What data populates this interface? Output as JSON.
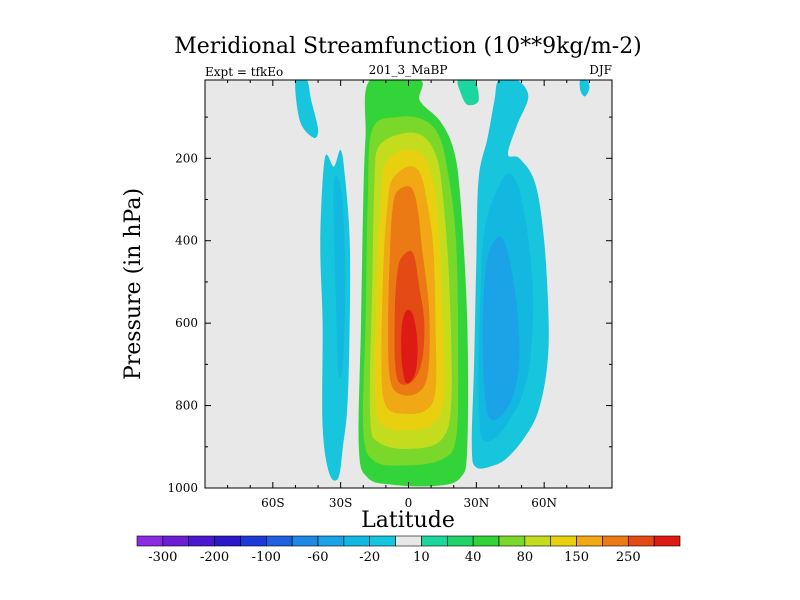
{
  "chart_data": {
    "type": "heatmap",
    "title": "Meridional Streamfunction (10**9kg/m-2)",
    "left_string": "Expt = tfkEo",
    "center_string": "201_3_MaBP",
    "right_string": "DJF",
    "xlabel": "Latitude",
    "ylabel": "Pressure (in hPa)",
    "xlim": [
      -90,
      90
    ],
    "ylim": [
      1000,
      10
    ],
    "x_ticks": [
      {
        "value": -60,
        "label": "60S"
      },
      {
        "value": -30,
        "label": "30S"
      },
      {
        "value": 0,
        "label": "0"
      },
      {
        "value": 30,
        "label": "30N"
      },
      {
        "value": 60,
        "label": "60N"
      }
    ],
    "y_ticks": [
      {
        "value": 200,
        "label": "200"
      },
      {
        "value": 400,
        "label": "400"
      },
      {
        "value": 600,
        "label": "600"
      },
      {
        "value": 800,
        "label": "800"
      },
      {
        "value": 1000,
        "label": "1000"
      }
    ],
    "colorbar": {
      "levels": [
        -300,
        -250,
        -200,
        -150,
        -100,
        -80,
        -60,
        -40,
        -20,
        -10,
        10,
        20,
        40,
        60,
        80,
        100,
        150,
        200,
        250,
        300
      ],
      "labels": [
        "-300",
        "-200",
        "-100",
        "-60",
        "-20",
        "10",
        "40",
        "80",
        "150",
        "250"
      ],
      "colors": [
        "#8a2be2",
        "#6a1fd6",
        "#4b16d0",
        "#2b16c8",
        "#1c3ad8",
        "#1f5fe0",
        "#1e88e5",
        "#1aa3e6",
        "#13b8e0",
        "#17c5dd",
        "#e8e8e8",
        "#1cd6a0",
        "#22d36a",
        "#33d43a",
        "#7ad82a",
        "#c4dc1e",
        "#e8cf10",
        "#f0a814",
        "#ec7a14",
        "#e44a14",
        "#dd1a14"
      ]
    },
    "fields": {
      "background": {
        "color": "#e8e8e8"
      },
      "positive_cell": [
        {
          "value": 20,
          "color": "#33d43a",
          "outline": [
            [
              -17,
              10
            ],
            [
              5,
              10
            ],
            [
              5,
              60
            ],
            [
              14,
              110
            ],
            [
              20,
              180
            ],
            [
              23,
              300
            ],
            [
              26,
              600
            ],
            [
              26,
              900
            ],
            [
              23,
              975
            ],
            [
              12,
              995
            ],
            [
              -7,
              992
            ],
            [
              -18,
              975
            ],
            [
              -22,
              900
            ],
            [
              -21,
              600
            ],
            [
              -20,
              300
            ],
            [
              -19,
              150
            ]
          ]
        },
        {
          "value": 40,
          "color": "#7ad82a",
          "outline": [
            [
              -16,
              130
            ],
            [
              -5,
              100
            ],
            [
              6,
              105
            ],
            [
              13,
              140
            ],
            [
              17,
              220
            ],
            [
              21,
              400
            ],
            [
              22,
              700
            ],
            [
              21,
              880
            ],
            [
              15,
              930
            ],
            [
              0,
              945
            ],
            [
              -15,
              935
            ],
            [
              -20,
              860
            ],
            [
              -19,
              600
            ],
            [
              -18,
              300
            ]
          ]
        },
        {
          "value": 80,
          "color": "#c4dc1e",
          "outline": [
            [
              -13,
              170
            ],
            [
              -3,
              140
            ],
            [
              6,
              145
            ],
            [
              12,
              190
            ],
            [
              15,
              280
            ],
            [
              18,
              500
            ],
            [
              19,
              780
            ],
            [
              15,
              880
            ],
            [
              2,
              905
            ],
            [
              -13,
              890
            ],
            [
              -17,
              820
            ],
            [
              -16,
              500
            ],
            [
              -15,
              250
            ]
          ]
        },
        {
          "value": 100,
          "color": "#e8cf10",
          "outline": [
            [
              -10,
              210
            ],
            [
              -2,
              180
            ],
            [
              6,
              190
            ],
            [
              10,
              240
            ],
            [
              13,
              330
            ],
            [
              15,
              550
            ],
            [
              16,
              760
            ],
            [
              12,
              840
            ],
            [
              0,
              860
            ],
            [
              -12,
              845
            ],
            [
              -15,
              760
            ],
            [
              -14,
              480
            ],
            [
              -12,
              280
            ]
          ]
        },
        {
          "value": 150,
          "color": "#f0a814",
          "outline": [
            [
              -7,
              250
            ],
            [
              0,
              220
            ],
            [
              5,
              235
            ],
            [
              8,
              300
            ],
            [
              11,
              420
            ],
            [
              12,
              620
            ],
            [
              12,
              760
            ],
            [
              8,
              810
            ],
            [
              -2,
              820
            ],
            [
              -10,
              800
            ],
            [
              -12,
              700
            ],
            [
              -11,
              450
            ],
            [
              -9,
              300
            ]
          ]
        },
        {
          "value": 200,
          "color": "#ec7a14",
          "outline": [
            [
              -5,
              280
            ],
            [
              1,
              270
            ],
            [
              4,
              320
            ],
            [
              6,
              420
            ],
            [
              9,
              560
            ],
            [
              9,
              700
            ],
            [
              6,
              760
            ],
            [
              -2,
              775
            ],
            [
              -8,
              740
            ],
            [
              -9,
              600
            ],
            [
              -8,
              400
            ],
            [
              -7,
              320
            ]
          ]
        },
        {
          "value": 250,
          "color": "#e44a14",
          "outline": [
            [
              -3,
              440
            ],
            [
              2,
              430
            ],
            [
              5,
              520
            ],
            [
              7,
              600
            ],
            [
              6,
              690
            ],
            [
              2,
              740
            ],
            [
              -4,
              745
            ],
            [
              -6,
              690
            ],
            [
              -6,
              560
            ],
            [
              -5,
              480
            ]
          ]
        },
        {
          "value": 300,
          "color": "#dd1a14",
          "outline": [
            [
              -1,
              570
            ],
            [
              2,
              580
            ],
            [
              4,
              650
            ],
            [
              3,
              720
            ],
            [
              -1,
              745
            ],
            [
              -3,
              690
            ],
            [
              -3,
              610
            ]
          ]
        }
      ],
      "nh_negative_cell": [
        {
          "value": -10,
          "color": "#17c5dd",
          "outline": [
            [
              40,
              10
            ],
            [
              48,
              10
            ],
            [
              53,
              50
            ],
            [
              48,
              120
            ],
            [
              44,
              190
            ],
            [
              49,
              200
            ],
            [
              56,
              260
            ],
            [
              60,
              400
            ],
            [
              62,
              600
            ],
            [
              61,
              720
            ],
            [
              57,
              820
            ],
            [
              51,
              880
            ],
            [
              44,
              925
            ],
            [
              38,
              945
            ],
            [
              30,
              950
            ],
            [
              28,
              900
            ],
            [
              29,
              700
            ],
            [
              30,
              450
            ],
            [
              31,
              250
            ],
            [
              35,
              150
            ],
            [
              38,
              60
            ]
          ]
        },
        {
          "value": -20,
          "color": "#13b8e0",
          "outline": [
            [
              36,
              320
            ],
            [
              43,
              240
            ],
            [
              48,
              260
            ],
            [
              52,
              360
            ],
            [
              55,
              520
            ],
            [
              54,
              680
            ],
            [
              50,
              780
            ],
            [
              44,
              840
            ],
            [
              38,
              880
            ],
            [
              32,
              870
            ],
            [
              31,
              700
            ],
            [
              32,
              500
            ],
            [
              33,
              400
            ]
          ]
        },
        {
          "value": -40,
          "color": "#1aa3e6",
          "outline": [
            [
              35,
              440
            ],
            [
              40,
              390
            ],
            [
              44,
              430
            ],
            [
              48,
              560
            ],
            [
              49,
              690
            ],
            [
              46,
              780
            ],
            [
              40,
              830
            ],
            [
              35,
              820
            ],
            [
              33,
              700
            ],
            [
              33,
              560
            ]
          ]
        }
      ],
      "sh_negative_cell": [
        {
          "value": -10,
          "color": "#17c5dd",
          "outline": [
            [
              -37,
              200
            ],
            [
              -33,
              220
            ],
            [
              -30,
              180
            ],
            [
              -28,
              250
            ],
            [
              -26,
              400
            ],
            [
              -26,
              600
            ],
            [
              -27,
              800
            ],
            [
              -29,
              900
            ],
            [
              -31,
              975
            ],
            [
              -35,
              965
            ],
            [
              -38,
              850
            ],
            [
              -38,
              600
            ],
            [
              -39,
              400
            ]
          ]
        },
        {
          "value": -20,
          "color": "#13b8e0",
          "outline": [
            [
              -33,
              260
            ],
            [
              -31,
              250
            ],
            [
              -29,
              320
            ],
            [
              -28,
              500
            ],
            [
              -29,
              700
            ],
            [
              -31,
              720
            ],
            [
              -32,
              560
            ],
            [
              -33,
              380
            ]
          ]
        }
      ],
      "misc_features": [
        {
          "value": -10,
          "color": "#17c5dd",
          "outline": [
            [
              -50,
              10
            ],
            [
              -45,
              10
            ],
            [
              -43,
              60
            ],
            [
              -40,
              130
            ],
            [
              -42,
              150
            ],
            [
              -48,
              110
            ]
          ]
        },
        {
          "value": -10,
          "color": "#17c5dd",
          "outline": [
            [
              -32,
              870
            ],
            [
              -31,
              890
            ],
            [
              -32,
              910
            ],
            [
              -33,
              890
            ]
          ]
        },
        {
          "value": 20,
          "color": "#1cd6a0",
          "outline": [
            [
              22,
              10
            ],
            [
              29,
              10
            ],
            [
              31,
              60
            ],
            [
              26,
              70
            ],
            [
              23,
              40
            ]
          ]
        },
        {
          "value": -10,
          "color": "#17c5dd",
          "outline": [
            [
              76,
              10
            ],
            [
              79,
              10
            ],
            [
              80,
              30
            ],
            [
              78,
              50
            ],
            [
              76,
              35
            ]
          ]
        }
      ]
    }
  }
}
